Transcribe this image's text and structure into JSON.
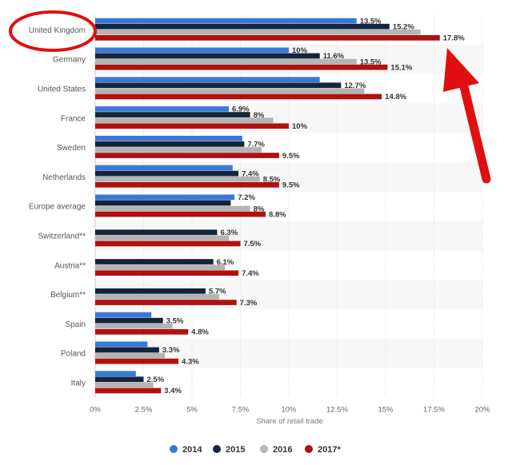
{
  "chart_data": {
    "type": "bar",
    "orientation": "horizontal",
    "categories": [
      "United Kingdom",
      "Germany",
      "United States",
      "France",
      "Sweden",
      "Netherlands",
      "Europe average",
      "Switzerland**",
      "Austria**",
      "Belgium**",
      "Spain",
      "Poland",
      "Italy"
    ],
    "series": [
      {
        "name": "2014",
        "color": "#3a78d8",
        "values": [
          13.5,
          10,
          11.6,
          6.9,
          7.6,
          7.1,
          7.2,
          null,
          null,
          null,
          2.9,
          2.7,
          2.1
        ],
        "labels": [
          "13.5%",
          "10%",
          "",
          "6.9%",
          "",
          "",
          "7.2%",
          "",
          "",
          "",
          "",
          "",
          ""
        ]
      },
      {
        "name": "2015",
        "color": "#14243b",
        "values": [
          15.2,
          11.6,
          12.7,
          8,
          7.7,
          7.4,
          7.0,
          6.3,
          6.1,
          5.7,
          3.5,
          3.3,
          2.5
        ],
        "labels": [
          "15.2%",
          "11.6%",
          "12.7%",
          "8%",
          "7.7%",
          "7.4%",
          "",
          "6.3%",
          "6.1%",
          "5.7%",
          "3.5%",
          "3.3%",
          "2.5%"
        ]
      },
      {
        "name": "2016",
        "color": "#b4b4b4",
        "values": [
          16.8,
          13.5,
          13.9,
          9.2,
          8.6,
          8.5,
          8,
          6.9,
          6.7,
          6.4,
          4.0,
          3.6,
          3.0
        ],
        "labels": [
          "",
          "13.5%",
          "",
          "",
          "",
          "8.5%",
          "8%",
          "",
          "",
          "",
          "",
          "",
          ""
        ]
      },
      {
        "name": "2017*",
        "color": "#b01010",
        "values": [
          17.8,
          15.1,
          14.8,
          10,
          9.5,
          9.5,
          8.8,
          7.5,
          7.4,
          7.3,
          4.8,
          4.3,
          3.4
        ],
        "labels": [
          "17.8%",
          "15.1%",
          "14.8%",
          "10%",
          "9.5%",
          "9.5%",
          "8.8%",
          "7.5%",
          "7.4%",
          "7.3%",
          "4.8%",
          "4.3%",
          "3.4%"
        ]
      }
    ],
    "xlabel": "Share of retail trade",
    "ylabel": "",
    "xlim": [
      0,
      20
    ],
    "xticks": [
      0,
      2.5,
      5,
      7.5,
      10,
      12.5,
      15,
      17.5,
      20
    ],
    "xtick_labels": [
      "0%",
      "2.5%",
      "5%",
      "7.5%",
      "10%",
      "12.5%",
      "15%",
      "17.5%",
      "20%"
    ],
    "grid": true,
    "legend_position": "bottom",
    "annotations": {
      "highlight_circle_color": "#e01010",
      "arrow_color": "#e01010"
    }
  }
}
